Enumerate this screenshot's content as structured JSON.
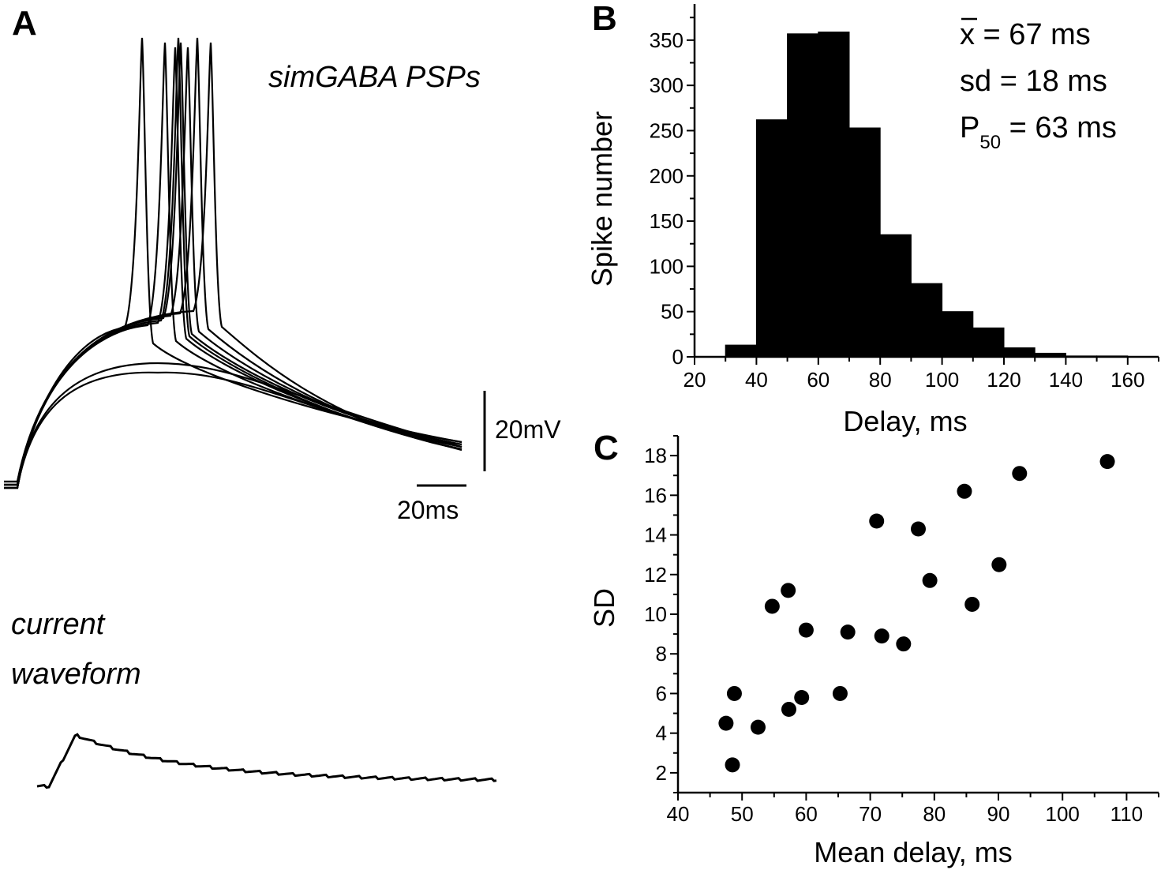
{
  "panels": {
    "a": "A",
    "b": "B",
    "c": "C"
  },
  "panel_a": {
    "trace_label": "simGABA PSPs",
    "waveform_label_line1": "current",
    "waveform_label_line2": "waveform",
    "scale_voltage": "20mV",
    "scale_time": "20ms"
  },
  "chart_data": [
    {
      "type": "bar",
      "panel": "B",
      "title": "",
      "xlabel": "Delay, ms",
      "ylabel": "Spike number",
      "bin_edges": [
        30,
        40,
        50,
        60,
        70,
        80,
        90,
        100,
        110,
        120,
        130,
        140,
        150,
        160
      ],
      "values": [
        13,
        262,
        357,
        359,
        253,
        135,
        81,
        50,
        32,
        10,
        4,
        1,
        1
      ],
      "xlim": [
        20,
        170
      ],
      "ylim": [
        0,
        390
      ],
      "xticks": [
        20,
        40,
        60,
        80,
        100,
        120,
        140,
        160
      ],
      "yticks": [
        0,
        50,
        100,
        150,
        200,
        250,
        300,
        350
      ],
      "annotations": {
        "mean": {
          "symbol": "x",
          "text": " = 67 ms"
        },
        "sd": {
          "text": "sd = 18 ms"
        },
        "p50": {
          "symbol": "P",
          "subscript": "50",
          "text": " = 63 ms"
        }
      }
    },
    {
      "type": "scatter",
      "panel": "C",
      "title": "",
      "xlabel": "Mean delay, ms",
      "ylabel": "SD",
      "xlim": [
        40,
        115
      ],
      "ylim": [
        1,
        19
      ],
      "xticks": [
        40,
        50,
        60,
        70,
        80,
        90,
        100,
        110
      ],
      "yticks": [
        2,
        4,
        6,
        8,
        10,
        12,
        14,
        16,
        18
      ],
      "points": [
        {
          "x": 47.5,
          "y": 4.5
        },
        {
          "x": 48.5,
          "y": 2.4
        },
        {
          "x": 48.8,
          "y": 6.0
        },
        {
          "x": 52.5,
          "y": 4.3
        },
        {
          "x": 54.7,
          "y": 10.4
        },
        {
          "x": 57.2,
          "y": 11.2
        },
        {
          "x": 57.3,
          "y": 5.2
        },
        {
          "x": 59.3,
          "y": 5.8
        },
        {
          "x": 60.0,
          "y": 9.2
        },
        {
          "x": 65.3,
          "y": 6.0
        },
        {
          "x": 66.5,
          "y": 9.1
        },
        {
          "x": 71.0,
          "y": 14.7
        },
        {
          "x": 71.8,
          "y": 8.9
        },
        {
          "x": 75.2,
          "y": 8.5
        },
        {
          "x": 77.5,
          "y": 14.3
        },
        {
          "x": 79.3,
          "y": 11.7
        },
        {
          "x": 84.7,
          "y": 16.2
        },
        {
          "x": 85.9,
          "y": 10.5
        },
        {
          "x": 90.1,
          "y": 12.5
        },
        {
          "x": 93.3,
          "y": 17.1
        },
        {
          "x": 107.0,
          "y": 17.7
        }
      ]
    }
  ]
}
